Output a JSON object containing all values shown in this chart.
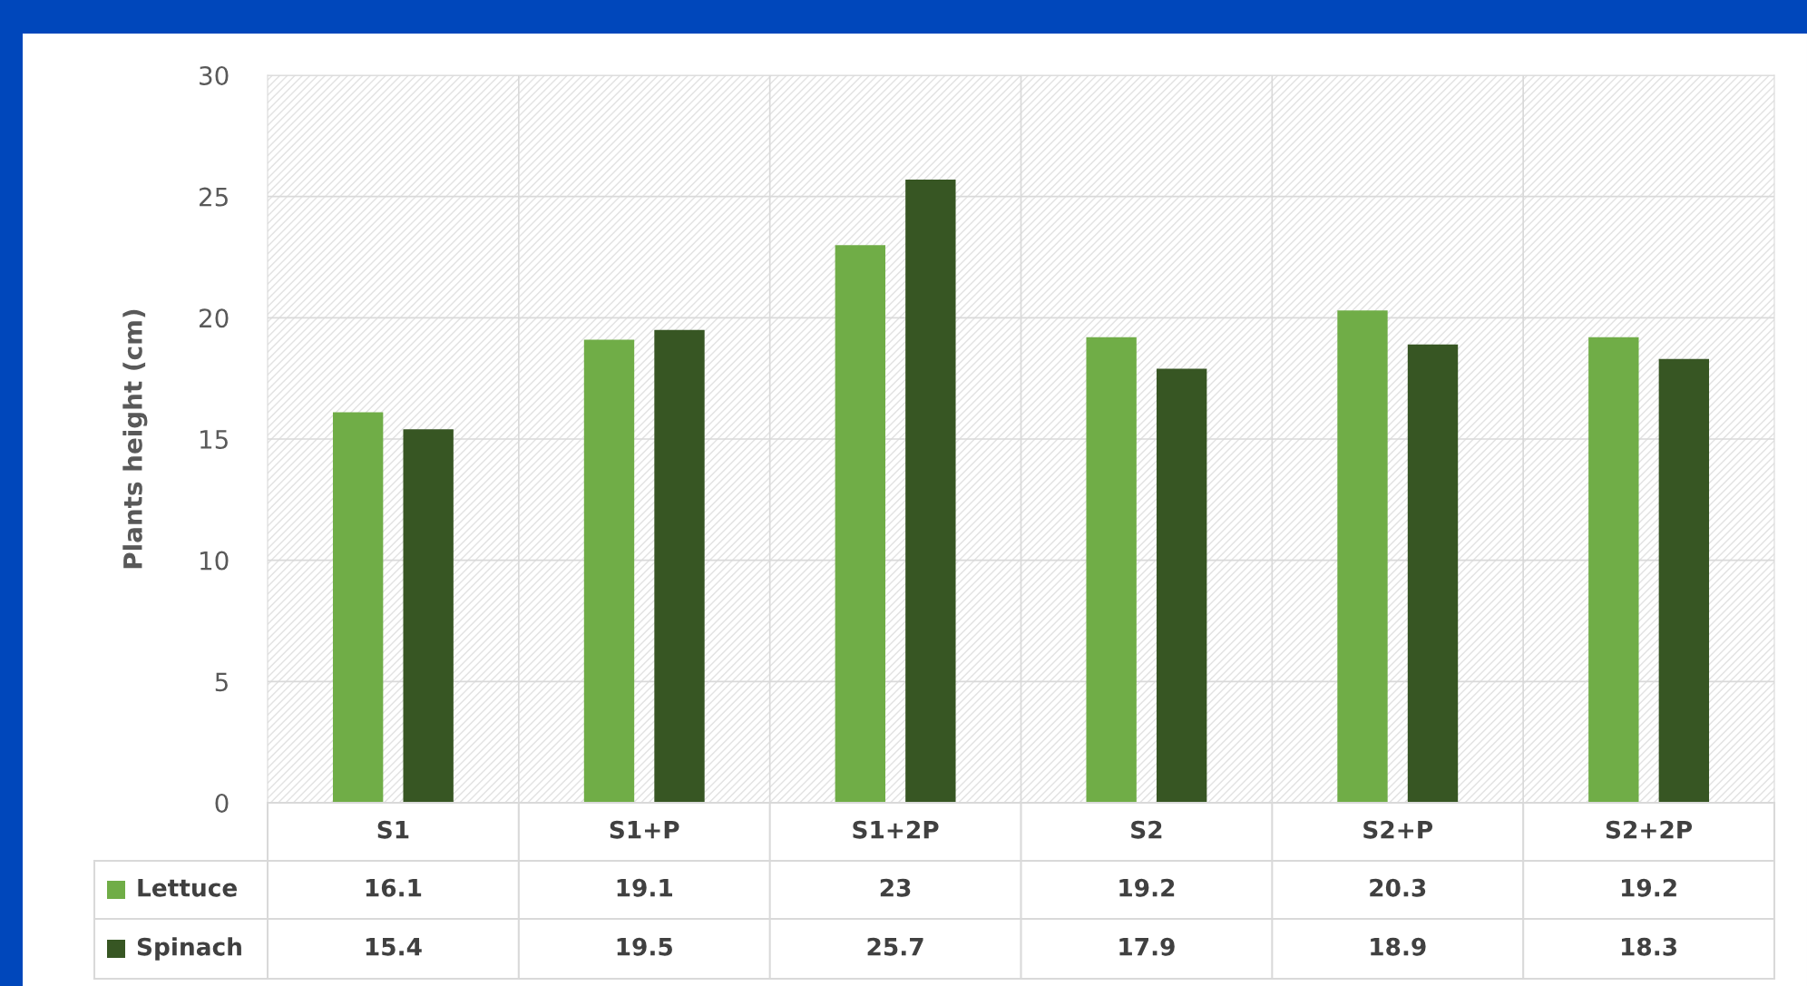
{
  "chart_data": {
    "type": "bar",
    "ylabel": "Plants height (cm)",
    "categories": [
      "S1",
      "S1+P",
      "S1+2P",
      "S2",
      "S2+P",
      "S2+2P"
    ],
    "series": [
      {
        "name": "Lettuce",
        "color": "#70ad47",
        "values": [
          16.1,
          19.1,
          23,
          19.2,
          20.3,
          19.2
        ]
      },
      {
        "name": "Spinach",
        "color": "#375623",
        "values": [
          15.4,
          19.5,
          25.7,
          17.9,
          18.9,
          18.3
        ]
      }
    ],
    "ylim": [
      0,
      30
    ],
    "yticks": [
      0,
      5,
      10,
      15,
      20,
      25,
      30
    ],
    "grid": true,
    "legend": "bottom",
    "data_labels": true
  }
}
